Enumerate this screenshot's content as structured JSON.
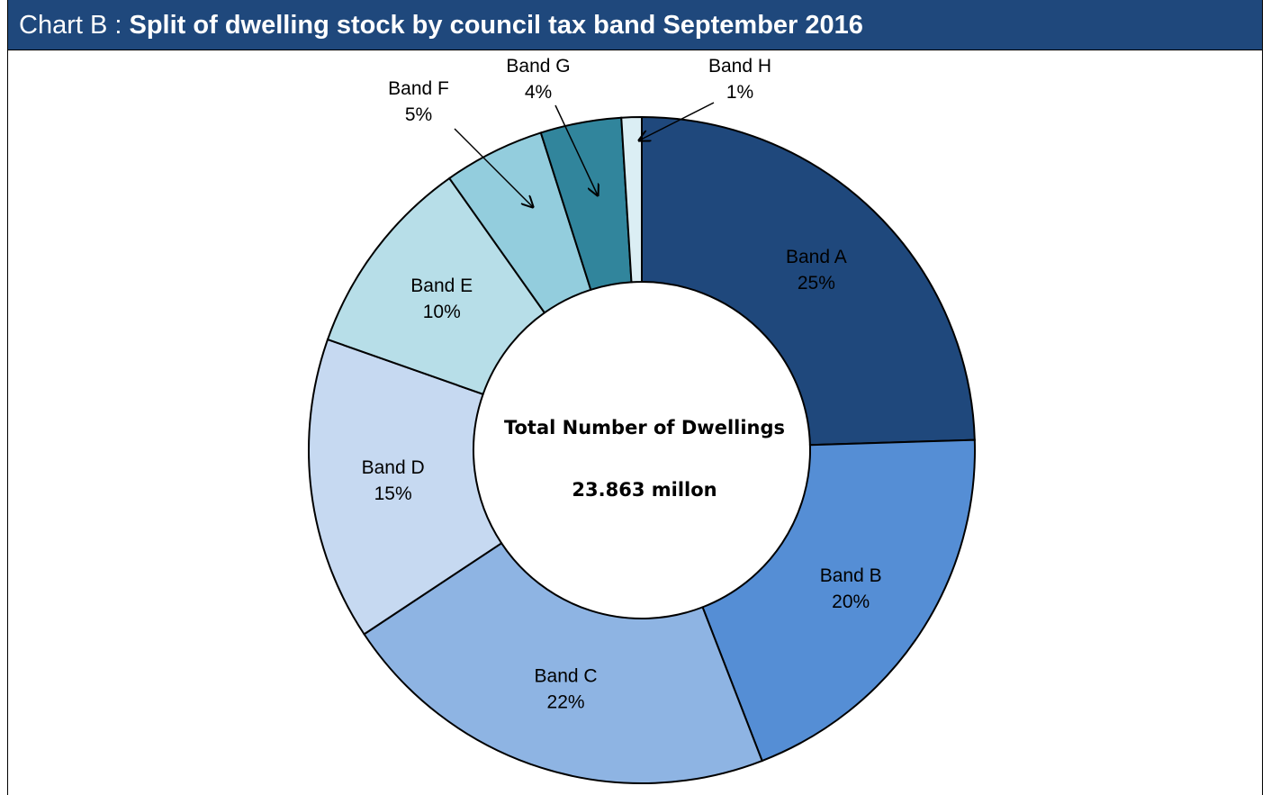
{
  "title": {
    "prefix": "Chart B : ",
    "main": "Split of dwelling stock by council tax band September  2016"
  },
  "chart_data": {
    "type": "pie",
    "title": "Chart B : Split of dwelling stock by council tax band September  2016",
    "donut": true,
    "center_text": [
      "Total Number of Dwellings",
      "23.863 millon"
    ],
    "categories": [
      "Band A",
      "Band B",
      "Band C",
      "Band D",
      "Band E",
      "Band F",
      "Band G",
      "Band H"
    ],
    "values": [
      25,
      20,
      22,
      15,
      10,
      5,
      4,
      1
    ],
    "labels": [
      "25%",
      "20%",
      "22%",
      "15%",
      "10%",
      "5%",
      "4%",
      "1%"
    ],
    "colors": [
      "#1f487c",
      "#558ed5",
      "#8eb4e3",
      "#c6d9f1",
      "#b7dee8",
      "#93cddd",
      "#31859c",
      "#dbeef4"
    ]
  }
}
